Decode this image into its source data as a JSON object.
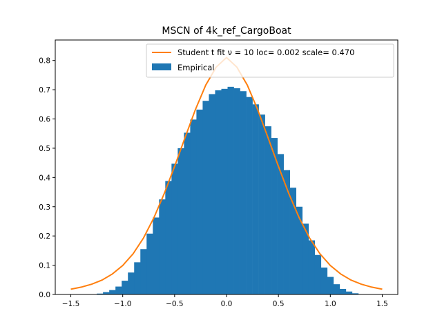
{
  "chart_data": {
    "type": "bar",
    "title": "MSCN of 4k_ref_CargoBoat",
    "xlabel": "",
    "ylabel": "",
    "xlim": [
      -1.65,
      1.65
    ],
    "ylim": [
      0,
      0.87
    ],
    "xticks": [
      -1.5,
      -1.0,
      -0.5,
      0.0,
      0.5,
      1.0,
      1.5
    ],
    "xtick_labels": [
      "−1.5",
      "−1.0",
      "−0.5",
      "0.0",
      "0.5",
      "1.0",
      "1.5"
    ],
    "yticks": [
      0.0,
      0.1,
      0.2,
      0.3,
      0.4,
      0.5,
      0.6,
      0.7,
      0.8
    ],
    "ytick_labels": [
      "0.0",
      "0.1",
      "0.2",
      "0.3",
      "0.4",
      "0.5",
      "0.6",
      "0.7",
      "0.8"
    ],
    "legend_position": "top-right",
    "grid": false,
    "series": [
      {
        "name": "Student t fit ν = 10 loc= 0.002 scale= 0.470",
        "kind": "line",
        "color": "#ff7f0e",
        "x": [
          -1.5,
          -1.4,
          -1.3,
          -1.2,
          -1.1,
          -1.0,
          -0.9,
          -0.8,
          -0.7,
          -0.6,
          -0.5,
          -0.4,
          -0.3,
          -0.2,
          -0.1,
          0.0,
          0.1,
          0.2,
          0.3,
          0.4,
          0.5,
          0.6,
          0.7,
          0.8,
          0.9,
          1.0,
          1.1,
          1.2,
          1.3,
          1.4,
          1.5
        ],
        "y": [
          0.018,
          0.025,
          0.035,
          0.049,
          0.07,
          0.099,
          0.139,
          0.193,
          0.262,
          0.345,
          0.438,
          0.536,
          0.632,
          0.716,
          0.777,
          0.81,
          0.777,
          0.716,
          0.632,
          0.536,
          0.438,
          0.345,
          0.262,
          0.193,
          0.139,
          0.099,
          0.07,
          0.049,
          0.035,
          0.025,
          0.018
        ]
      },
      {
        "name": "Empirical",
        "kind": "histogram",
        "color": "#1f77b4",
        "bin_centers": [
          -1.22,
          -1.16,
          -1.1,
          -1.04,
          -0.98,
          -0.92,
          -0.86,
          -0.8,
          -0.74,
          -0.68,
          -0.62,
          -0.56,
          -0.5,
          -0.44,
          -0.38,
          -0.32,
          -0.26,
          -0.2,
          -0.14,
          -0.08,
          -0.02,
          0.04,
          0.1,
          0.16,
          0.22,
          0.28,
          0.34,
          0.4,
          0.46,
          0.52,
          0.58,
          0.64,
          0.7,
          0.76,
          0.82,
          0.88,
          0.94,
          1.0,
          1.06,
          1.12,
          1.18,
          1.24,
          1.3
        ],
        "values": [
          0.003,
          0.008,
          0.015,
          0.027,
          0.047,
          0.075,
          0.11,
          0.155,
          0.208,
          0.263,
          0.325,
          0.388,
          0.447,
          0.5,
          0.553,
          0.598,
          0.632,
          0.662,
          0.685,
          0.698,
          0.703,
          0.71,
          0.705,
          0.695,
          0.675,
          0.65,
          0.615,
          0.575,
          0.535,
          0.48,
          0.425,
          0.365,
          0.3,
          0.242,
          0.185,
          0.135,
          0.092,
          0.06,
          0.035,
          0.019,
          0.01,
          0.004,
          0.001
        ]
      }
    ]
  }
}
